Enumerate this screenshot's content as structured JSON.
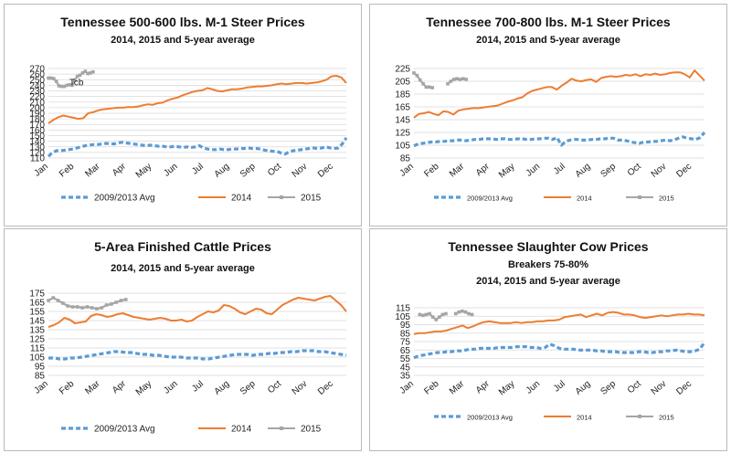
{
  "colors": {
    "avg": "#5b9bd5",
    "y2014": "#ed7d31",
    "y2015": "#a5a5a5",
    "grid": "#d9d9d9"
  },
  "chart_data": [
    {
      "type": "line",
      "title": "Tennessee 500-600 lbs. M-1 Steer Prices",
      "subtitle": "2014, 2015 and 5-year average",
      "yticks": [
        270,
        260,
        250,
        240,
        230,
        220,
        210,
        200,
        190,
        180,
        170,
        160,
        150,
        140,
        130,
        120,
        110
      ],
      "ylim": [
        110,
        270
      ],
      "xlabels": [
        "Jan",
        "Feb",
        "Mar",
        "Apr",
        "May",
        "Jun",
        "Jul",
        "Aug",
        "Sep",
        "Oct",
        "Nov",
        "Dec"
      ],
      "legend": [
        "2009/2013 Avg",
        "2014",
        "2015"
      ],
      "series": [
        {
          "name": "2009/2013 Avg",
          "style": "dashed",
          "values": [
            113,
            120,
            123,
            123,
            124,
            125,
            126,
            128,
            130,
            132,
            133,
            134,
            134,
            135,
            136,
            136,
            135,
            137,
            138,
            137,
            136,
            135,
            134,
            133,
            132,
            133,
            132,
            131,
            131,
            130,
            130,
            131,
            130,
            129,
            130,
            129,
            130,
            132,
            128,
            126,
            125,
            125,
            126,
            125,
            125,
            126,
            126,
            127,
            127,
            128,
            127,
            127,
            126,
            124,
            123,
            122,
            122,
            119,
            117,
            121,
            123,
            124,
            125,
            126,
            127,
            128,
            127,
            128,
            130,
            128,
            127,
            128,
            135,
            146
          ]
        },
        {
          "name": "2014",
          "style": "solid",
          "values": [
            172,
            178,
            183,
            186,
            184,
            182,
            180,
            181,
            190,
            192,
            195,
            197,
            198,
            199,
            200,
            200,
            201,
            201,
            202,
            204,
            206,
            205,
            208,
            209,
            213,
            216,
            218,
            222,
            225,
            228,
            230,
            231,
            235,
            233,
            230,
            229,
            231,
            233,
            233,
            234,
            236,
            237,
            238,
            238,
            239,
            240,
            242,
            243,
            242,
            243,
            244,
            244,
            243,
            244,
            245,
            247,
            250,
            256,
            257,
            254,
            244
          ]
        },
        {
          "name": "2015",
          "style": "solid-marker",
          "values": [
            253,
            253,
            252,
            247,
            239,
            238,
            238,
            240,
            241,
            240,
            249,
            256,
            258,
            262,
            265,
            261,
            262,
            264
          ]
        }
      ],
      "x_fracs": {
        "2015": [
          0,
          0.15
        ]
      },
      "annotations": [
        {
          "text": "Tcb",
          "x": 0.07,
          "y": 240
        }
      ]
    },
    {
      "type": "line",
      "title": "Tennessee 700-800 lbs. M-1 Steer Prices",
      "subtitle": "2014, 2015 and 5-year average",
      "yticks": [
        225,
        205,
        185,
        165,
        145,
        125,
        105,
        85
      ],
      "ylim": [
        85,
        225
      ],
      "xlabels": [
        "Jan",
        "Feb",
        "Mar",
        "Apr",
        "May",
        "Jun",
        "Jul",
        "Aug",
        "Sep",
        "Oct",
        "Nov",
        "Dec"
      ],
      "legend": [
        "2009/2013 Avg",
        "2014",
        "2015"
      ],
      "series": [
        {
          "name": "2009/2013 Avg",
          "style": "dashed",
          "values": [
            104,
            107,
            108,
            109,
            110,
            110,
            111,
            111,
            112,
            112,
            113,
            113,
            112,
            113,
            114,
            114,
            115,
            115,
            115,
            114,
            115,
            115,
            114,
            114,
            115,
            115,
            114,
            114,
            115,
            115,
            116,
            116,
            114,
            117,
            105,
            111,
            113,
            114,
            114,
            113,
            113,
            114,
            114,
            115,
            115,
            116,
            116,
            113,
            113,
            112,
            110,
            109,
            108,
            110,
            110,
            111,
            111,
            112,
            113,
            112,
            113,
            116,
            118,
            116,
            115,
            114,
            117,
            125
          ]
        },
        {
          "name": "2014",
          "style": "solid",
          "values": [
            148,
            154,
            155,
            157,
            154,
            152,
            158,
            157,
            153,
            159,
            161,
            162,
            163,
            163,
            164,
            165,
            166,
            167,
            170,
            173,
            175,
            178,
            180,
            186,
            190,
            192,
            194,
            196,
            196,
            192,
            198,
            203,
            209,
            206,
            205,
            207,
            208,
            204,
            210,
            212,
            213,
            212,
            213,
            215,
            214,
            216,
            213,
            216,
            215,
            217,
            215,
            216,
            218,
            219,
            219,
            216,
            211,
            222,
            214,
            206
          ]
        },
        {
          "name": "2015",
          "style": "solid-marker",
          "values": [
            218,
            214,
            207,
            201,
            196,
            196,
            195,
            null,
            null,
            null,
            null,
            201,
            205,
            208,
            209,
            208,
            209,
            208
          ]
        }
      ],
      "x_fracs": {
        "2015": [
          0,
          0.18
        ]
      }
    },
    {
      "type": "line",
      "title": "5-Area Finished Cattle Prices",
      "subtitle": "2014, 2015 and 5-year average",
      "yticks": [
        175,
        165,
        155,
        145,
        135,
        125,
        115,
        105,
        95,
        85
      ],
      "ylim": [
        85,
        175
      ],
      "xlabels": [
        "Jan",
        "Feb",
        "Mar",
        "Apr",
        "May",
        "Jun",
        "Jul",
        "Aug",
        "Sep",
        "Oct",
        "Nov",
        "Dec"
      ],
      "legend": [
        "2009/2013 Avg",
        "2014",
        "2015"
      ],
      "series": [
        {
          "name": "2009/2013 Avg",
          "style": "dashed",
          "values": [
            104,
            104,
            103,
            103,
            104,
            104,
            105,
            106,
            107,
            108,
            109,
            110,
            111,
            111,
            110,
            110,
            109,
            108,
            108,
            107,
            107,
            106,
            105,
            105,
            105,
            104,
            104,
            104,
            103,
            103,
            104,
            105,
            106,
            107,
            108,
            108,
            108,
            107,
            108,
            108,
            109,
            109,
            110,
            110,
            111,
            111,
            112,
            112,
            112,
            111,
            111,
            110,
            109,
            108,
            107
          ]
        },
        {
          "name": "2014",
          "style": "solid",
          "values": [
            138,
            140,
            143,
            148,
            146,
            142,
            143,
            144,
            150,
            152,
            151,
            149,
            150,
            152,
            153,
            151,
            149,
            148,
            147,
            146,
            147,
            148,
            147,
            145,
            145,
            146,
            144,
            145,
            149,
            152,
            155,
            154,
            156,
            162,
            161,
            158,
            154,
            152,
            155,
            158,
            157,
            153,
            152,
            157,
            162,
            165,
            168,
            170,
            169,
            168,
            167,
            169,
            171,
            172,
            167,
            162,
            155
          ]
        },
        {
          "name": "2015",
          "style": "solid-marker",
          "values": [
            167,
            170,
            167,
            164,
            161,
            160,
            160,
            159,
            160,
            159,
            158,
            159,
            162,
            163,
            165,
            167,
            168
          ]
        }
      ],
      "x_fracs": {
        "2015": [
          0,
          0.26
        ]
      }
    },
    {
      "type": "line",
      "title": "Tennessee Slaughter Cow Prices",
      "subtitle": "Breakers 75-80%",
      "subtitle2": "2014, 2015 and 5-year average",
      "yticks": [
        115,
        105,
        95,
        85,
        75,
        65,
        55,
        45,
        35
      ],
      "ylim": [
        35,
        115
      ],
      "xlabels": [
        "Jan",
        "Feb",
        "Mar",
        "Apr",
        "May",
        "Jun",
        "Jul",
        "Aug",
        "Sep",
        "Oct",
        "Nov",
        "Dec"
      ],
      "legend": [
        "2009/2013 Avg",
        "2014",
        "2015"
      ],
      "series": [
        {
          "name": "2009/2013 Avg",
          "style": "dashed",
          "values": [
            56,
            58,
            59,
            60,
            61,
            62,
            62,
            63,
            63,
            64,
            64,
            65,
            66,
            66,
            67,
            67,
            67,
            67,
            68,
            68,
            68,
            68,
            69,
            69,
            69,
            68,
            68,
            67,
            68,
            72,
            70,
            67,
            66,
            66,
            66,
            65,
            65,
            65,
            65,
            64,
            64,
            63,
            63,
            63,
            62,
            62,
            62,
            62,
            63,
            63,
            62,
            62,
            63,
            63,
            64,
            64,
            65,
            64,
            63,
            63,
            64,
            66,
            74
          ]
        },
        {
          "name": "2014",
          "style": "solid",
          "values": [
            84,
            85,
            85,
            86,
            87,
            87,
            88,
            90,
            92,
            94,
            91,
            93,
            96,
            98,
            99,
            98,
            97,
            97,
            97,
            98,
            97,
            98,
            98,
            99,
            99,
            100,
            100,
            101,
            104,
            105,
            106,
            107,
            104,
            106,
            108,
            106,
            109,
            110,
            109,
            107,
            107,
            106,
            104,
            103,
            104,
            105,
            106,
            105,
            106,
            107,
            107,
            108,
            107,
            107,
            106
          ]
        },
        {
          "name": "2015",
          "style": "solid-marker",
          "values": [
            107,
            106,
            107,
            108,
            104,
            101,
            104,
            107,
            108,
            null,
            null,
            108,
            110,
            111,
            110,
            108,
            107
          ]
        }
      ],
      "x_fracs": {
        "2015": [
          0.02,
          0.2
        ]
      }
    }
  ]
}
